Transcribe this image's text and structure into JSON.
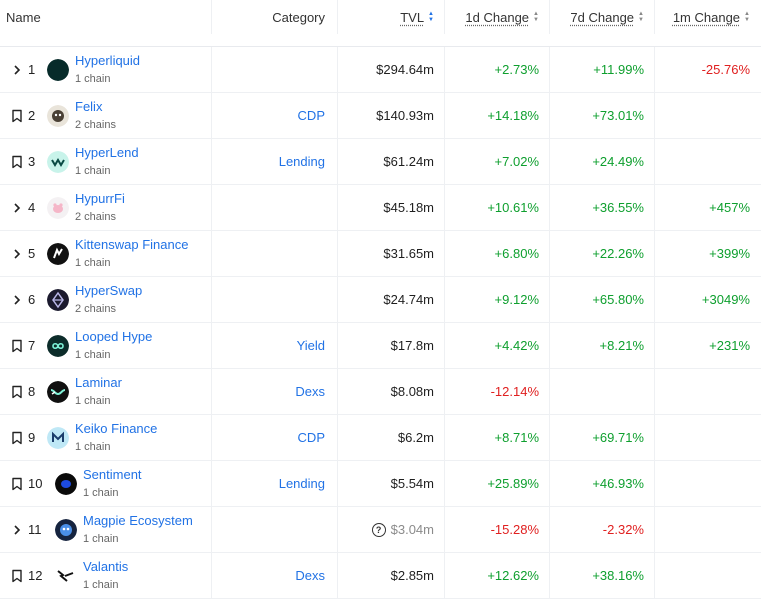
{
  "header": {
    "name": "Name",
    "category": "Category",
    "tvl": "TVL",
    "d1": "1d Change",
    "d7": "7d Change",
    "m1": "1m Change"
  },
  "colors": {
    "link": "#2172e5",
    "positive": "#0e9f2e",
    "negative": "#e02020"
  },
  "rows": [
    {
      "rank": "1",
      "name": "Hyperliquid",
      "chains": "1 chain",
      "category": "",
      "tvl": "$294.64m",
      "d1": "+2.73%",
      "d7": "+11.99%",
      "m1": "-25.76%",
      "lead": "chevron-right-icon",
      "logo": "hyperliquid-logo"
    },
    {
      "rank": "2",
      "name": "Felix",
      "chains": "2 chains",
      "category": "CDP",
      "tvl": "$140.93m",
      "d1": "+14.18%",
      "d7": "+73.01%",
      "m1": "",
      "lead": "bookmark-icon",
      "logo": "felix-logo"
    },
    {
      "rank": "3",
      "name": "HyperLend",
      "chains": "1 chain",
      "category": "Lending",
      "tvl": "$61.24m",
      "d1": "+7.02%",
      "d7": "+24.49%",
      "m1": "",
      "lead": "bookmark-icon",
      "logo": "hyperlend-logo"
    },
    {
      "rank": "4",
      "name": "HypurrFi",
      "chains": "2 chains",
      "category": "",
      "tvl": "$45.18m",
      "d1": "+10.61%",
      "d7": "+36.55%",
      "m1": "+457%",
      "lead": "chevron-right-icon",
      "logo": "hypurrfi-logo"
    },
    {
      "rank": "5",
      "name": "Kittenswap Finance",
      "chains": "1 chain",
      "category": "",
      "tvl": "$31.65m",
      "d1": "+6.80%",
      "d7": "+22.26%",
      "m1": "+399%",
      "lead": "chevron-right-icon",
      "logo": "kittenswap-logo"
    },
    {
      "rank": "6",
      "name": "HyperSwap",
      "chains": "2 chains",
      "category": "",
      "tvl": "$24.74m",
      "d1": "+9.12%",
      "d7": "+65.80%",
      "m1": "+3049%",
      "lead": "chevron-right-icon",
      "logo": "hyperswap-logo"
    },
    {
      "rank": "7",
      "name": "Looped Hype",
      "chains": "1 chain",
      "category": "Yield",
      "tvl": "$17.8m",
      "d1": "+4.42%",
      "d7": "+8.21%",
      "m1": "+231%",
      "lead": "bookmark-icon",
      "logo": "looped-hype-logo"
    },
    {
      "rank": "8",
      "name": "Laminar",
      "chains": "1 chain",
      "category": "Dexs",
      "tvl": "$8.08m",
      "d1": "-12.14%",
      "d7": "",
      "m1": "",
      "lead": "bookmark-icon",
      "logo": "laminar-logo"
    },
    {
      "rank": "9",
      "name": "Keiko Finance",
      "chains": "1 chain",
      "category": "CDP",
      "tvl": "$6.2m",
      "d1": "+8.71%",
      "d7": "+69.71%",
      "m1": "",
      "lead": "bookmark-icon",
      "logo": "keiko-logo"
    },
    {
      "rank": "10",
      "name": "Sentiment",
      "chains": "1 chain",
      "category": "Lending",
      "tvl": "$5.54m",
      "d1": "+25.89%",
      "d7": "+46.93%",
      "m1": "",
      "lead": "bookmark-icon",
      "logo": "sentiment-logo"
    },
    {
      "rank": "11",
      "name": "Magpie Ecosystem",
      "chains": "1 chain",
      "category": "",
      "tvl": "$3.04m",
      "d1": "-15.28%",
      "d7": "-2.32%",
      "m1": "",
      "lead": "chevron-right-icon",
      "logo": "magpie-logo",
      "tvl_uncertain": true
    },
    {
      "rank": "12",
      "name": "Valantis",
      "chains": "1 chain",
      "category": "Dexs",
      "tvl": "$2.85m",
      "d1": "+12.62%",
      "d7": "+38.16%",
      "m1": "",
      "lead": "bookmark-icon",
      "logo": "valantis-logo"
    }
  ]
}
